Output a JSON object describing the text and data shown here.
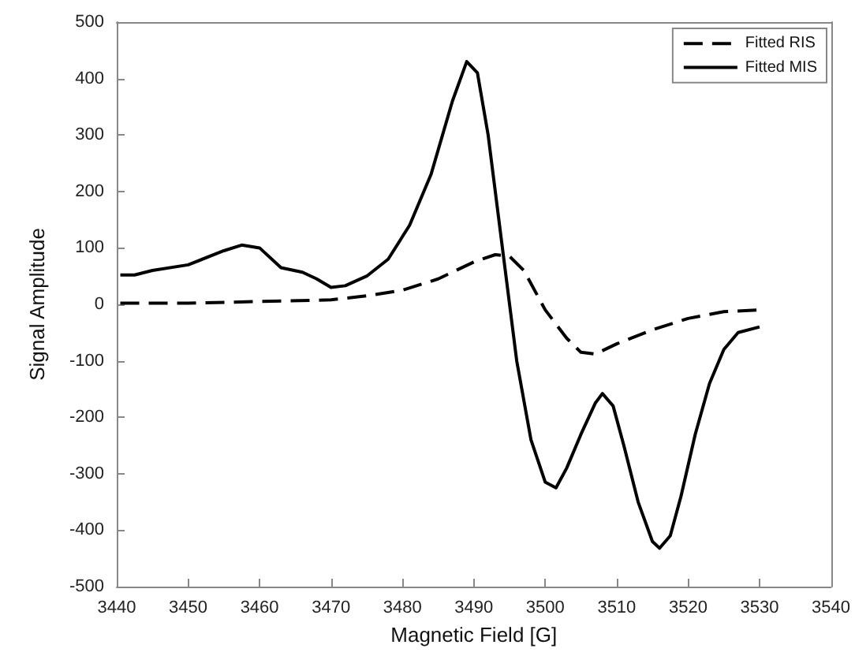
{
  "chart_data": {
    "type": "line",
    "xlabel": "Magnetic Field [G]",
    "ylabel": "Signal Amplitude",
    "xlim": [
      3440,
      3540
    ],
    "xticks": [
      3440,
      3450,
      3460,
      3470,
      3480,
      3490,
      3500,
      3510,
      3520,
      3530,
      3540
    ],
    "ylim": [
      -500,
      500
    ],
    "yticks": [
      -500,
      -400,
      -300,
      -200,
      -100,
      0,
      100,
      200,
      300,
      400,
      500
    ],
    "grid": false,
    "legend": "top right",
    "marker": "none",
    "series": [
      {
        "name": "Fitted RIS",
        "color": "#000000",
        "line_style": "dashed",
        "x": [
          3440.5,
          3450,
          3460,
          3470,
          3475,
          3480,
          3485,
          3490,
          3493,
          3495,
          3497,
          3500,
          3503,
          3505,
          3507,
          3510,
          3515,
          3520,
          3525,
          3530
        ],
        "values": [
          2,
          2,
          5,
          8,
          15,
          25,
          45,
          75,
          88,
          85,
          60,
          -10,
          -60,
          -85,
          -88,
          -70,
          -45,
          -25,
          -13,
          -10
        ]
      },
      {
        "name": "Fitted MIS",
        "color": "#000000",
        "line_style": "solid",
        "x": [
          3440.5,
          3442.5,
          3445,
          3450,
          3455,
          3457.5,
          3460,
          3463,
          3466,
          3468,
          3470,
          3472,
          3475,
          3478,
          3481,
          3484,
          3487,
          3489,
          3490.5,
          3492,
          3494,
          3496,
          3498,
          3500,
          3501.5,
          3503,
          3505,
          3507,
          3508,
          3509.5,
          3511,
          3513,
          3515,
          3516,
          3517.5,
          3519,
          3521,
          3523,
          3525,
          3527,
          3530
        ],
        "values": [
          52,
          52,
          60,
          70,
          95,
          105,
          100,
          65,
          57,
          45,
          30,
          33,
          50,
          80,
          140,
          230,
          360,
          430,
          410,
          300,
          100,
          -100,
          -240,
          -315,
          -325,
          -290,
          -230,
          -175,
          -158,
          -180,
          -250,
          -350,
          -420,
          -432,
          -410,
          -340,
          -230,
          -140,
          -80,
          -50,
          -40
        ]
      }
    ]
  }
}
